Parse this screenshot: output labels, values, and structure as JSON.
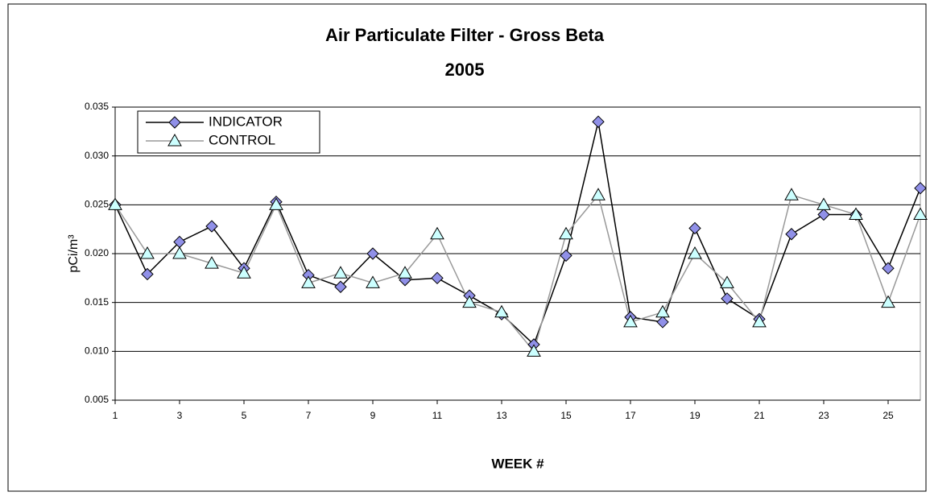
{
  "chart_data": {
    "type": "line",
    "title": "Air Particulate Filter - Gross Beta",
    "subtitle": "2005",
    "x_label": "WEEK #",
    "y_label": "pCi/m³",
    "x": [
      1,
      2,
      3,
      4,
      5,
      6,
      7,
      8,
      9,
      10,
      11,
      12,
      13,
      14,
      15,
      16,
      17,
      18,
      19,
      20,
      21,
      22,
      23,
      24,
      25,
      26
    ],
    "series": [
      {
        "name": "INDICATOR",
        "color": "#000000",
        "marker_color": "#9090e8",
        "marker": "diamond",
        "values": [
          0.025,
          0.0179,
          0.0212,
          0.0228,
          0.0185,
          0.0253,
          0.0178,
          0.0166,
          0.02,
          0.0173,
          0.0175,
          0.0157,
          0.0138,
          0.0107,
          0.0198,
          0.0335,
          0.0135,
          0.013,
          0.0226,
          0.0154,
          0.0133,
          0.022,
          0.024,
          0.024,
          0.0185,
          0.0267
        ]
      },
      {
        "name": "CONTROL",
        "color": "#999999",
        "marker_color": "#ccffff",
        "marker": "triangle",
        "values": [
          0.025,
          0.02,
          0.02,
          0.019,
          0.018,
          0.025,
          0.017,
          0.018,
          0.017,
          0.018,
          0.022,
          0.015,
          0.014,
          0.01,
          0.022,
          0.026,
          0.013,
          0.014,
          0.02,
          0.017,
          0.013,
          0.026,
          0.025,
          0.024,
          0.015,
          0.024
        ]
      }
    ],
    "xlim": [
      1,
      26
    ],
    "xticks": [
      1,
      3,
      5,
      7,
      9,
      11,
      13,
      15,
      17,
      19,
      21,
      23,
      25
    ],
    "ylim": [
      0.005,
      0.035
    ],
    "yticks": [
      0.005,
      {
        "value": 0.01,
        "label": "0.010"
      },
      0.015,
      {
        "value": 0.02,
        "label": "0.020"
      },
      0.025,
      {
        "value": 0.03,
        "label": "0.030"
      },
      0.035
    ],
    "grid": true,
    "legend": "upper left"
  }
}
